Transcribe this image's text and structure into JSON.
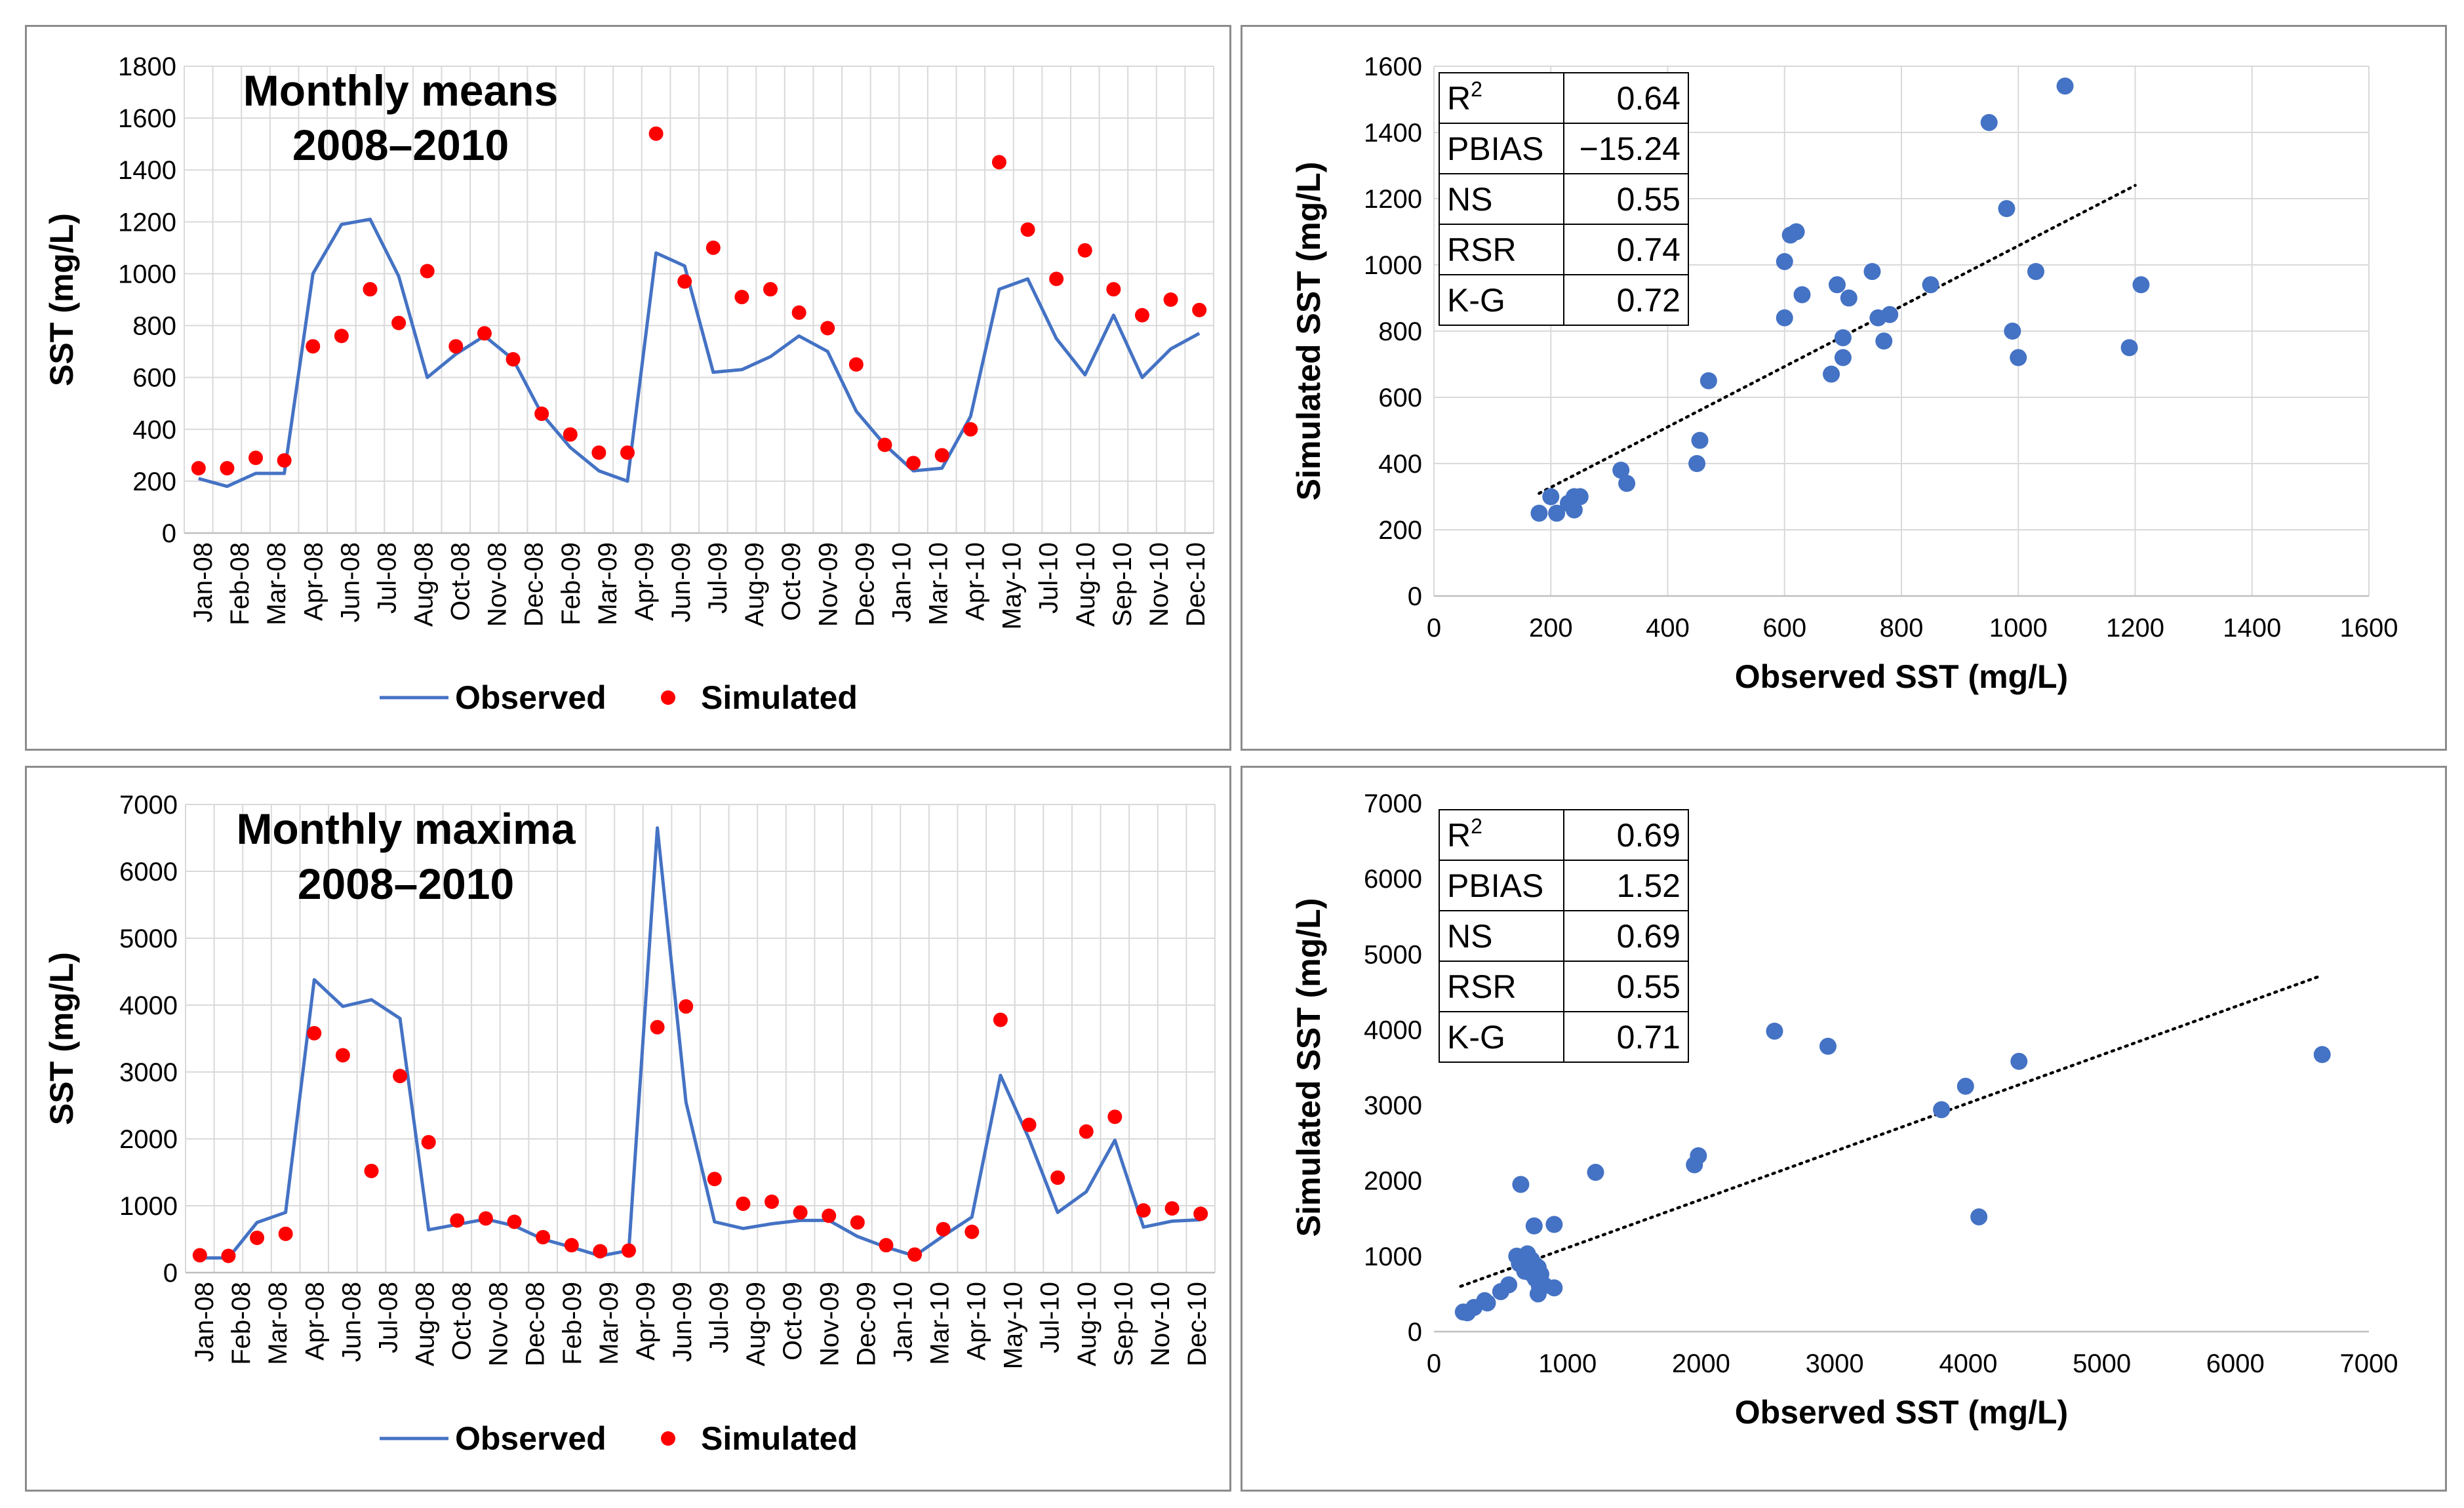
{
  "chart_data": [
    {
      "id": "ts-means",
      "type": "line",
      "title_line1": "Monthly means",
      "title_line2": "2008–2010",
      "xlabel": "",
      "ylabel": "SST (mg/L)",
      "ylim": [
        0,
        1800
      ],
      "yticks": [
        0,
        200,
        400,
        600,
        800,
        1000,
        1200,
        1400,
        1600,
        1800
      ],
      "grid": true,
      "legend_position": "bottom",
      "categories": [
        "Jan-08",
        "Feb-08",
        "Mar-08",
        "Apr-08",
        "May-08",
        "Jun-08",
        "Jul-08",
        "Aug-08",
        "Sep-08",
        "Oct-08",
        "Nov-08",
        "Dec-08",
        "Jan-09",
        "Feb-09",
        "Mar-09",
        "Apr-09",
        "May-09",
        "Jun-09",
        "Jul-09",
        "Aug-09",
        "Sep-09",
        "Oct-09",
        "Nov-09",
        "Dec-09",
        "Jan-10",
        "Feb-10",
        "Mar-10",
        "Apr-10",
        "May-10",
        "Jun-10",
        "Jul-10",
        "Aug-10",
        "Sep-10",
        "Oct-10",
        "Nov-10",
        "Dec-10"
      ],
      "tick_labels": [
        "Jan-08",
        "Feb-08",
        "Mar-08",
        "Apr-08",
        "Jun-08",
        "Jul-08",
        "Aug-08",
        "Oct-08",
        "Nov-08",
        "Dec-08",
        "Feb-09",
        "Mar-09",
        "Apr-09",
        "Jun-09",
        "Jul-09",
        "Aug-09",
        "Oct-09",
        "Nov-09",
        "Dec-09",
        "Jan-10",
        "Mar-10",
        "Apr-10",
        "May-10",
        "Jul-10",
        "Aug-10",
        "Sep-10",
        "Nov-10",
        "Dec-10"
      ],
      "series": [
        {
          "name": "Observed",
          "kind": "line",
          "color": "#4472c4",
          "values": [
            210,
            180,
            230,
            230,
            1000,
            1190,
            1210,
            990,
            600,
            690,
            760,
            670,
            460,
            330,
            240,
            200,
            1080,
            1030,
            620,
            630,
            680,
            760,
            700,
            470,
            340,
            240,
            250,
            450,
            940,
            980,
            750,
            610,
            840,
            600,
            710,
            770
          ]
        },
        {
          "name": "Simulated",
          "kind": "marker",
          "color": "#ff0000",
          "values": [
            250,
            250,
            290,
            280,
            720,
            760,
            940,
            810,
            1010,
            720,
            770,
            670,
            460,
            380,
            310,
            310,
            1540,
            970,
            1100,
            910,
            940,
            850,
            790,
            650,
            340,
            270,
            300,
            400,
            1430,
            1170,
            980,
            1090,
            940,
            840,
            900,
            860
          ]
        }
      ]
    },
    {
      "id": "sc-means",
      "type": "scatter",
      "xlabel": "Observed SST (mg/L)",
      "ylabel": "Simulated SST (mg/L)",
      "xlim": [
        0,
        1600
      ],
      "ylim": [
        0,
        1600
      ],
      "xticks": [
        0,
        200,
        400,
        600,
        800,
        1000,
        1200,
        1400,
        1600
      ],
      "yticks": [
        0,
        200,
        400,
        600,
        800,
        1000,
        1200,
        1400,
        1600
      ],
      "grid": true,
      "trendline": {
        "x": [
          180,
          1200
        ],
        "y": [
          310,
          1240
        ]
      },
      "color": "#4472c4",
      "points": [
        [
          180,
          250
        ],
        [
          200,
          300
        ],
        [
          210,
          250
        ],
        [
          230,
          280
        ],
        [
          240,
          300
        ],
        [
          240,
          260
        ],
        [
          250,
          300
        ],
        [
          320,
          380
        ],
        [
          330,
          340
        ],
        [
          450,
          400
        ],
        [
          455,
          470
        ],
        [
          470,
          650
        ],
        [
          600,
          1010
        ],
        [
          600,
          840
        ],
        [
          610,
          1090
        ],
        [
          620,
          1100
        ],
        [
          630,
          910
        ],
        [
          680,
          670
        ],
        [
          690,
          940
        ],
        [
          700,
          720
        ],
        [
          700,
          780
        ],
        [
          710,
          900
        ],
        [
          750,
          980
        ],
        [
          760,
          840
        ],
        [
          770,
          770
        ],
        [
          780,
          850
        ],
        [
          850,
          940
        ],
        [
          950,
          1430
        ],
        [
          980,
          1170
        ],
        [
          990,
          800
        ],
        [
          1000,
          720
        ],
        [
          1030,
          980
        ],
        [
          1080,
          1540
        ],
        [
          1190,
          750
        ],
        [
          1210,
          940
        ]
      ],
      "stats": [
        {
          "label": "R",
          "sup": "2",
          "value": "0.64"
        },
        {
          "label": "PBIAS",
          "sup": "",
          "value": "−15.24"
        },
        {
          "label": "NS",
          "sup": "",
          "value": "0.55"
        },
        {
          "label": "RSR",
          "sup": "",
          "value": "0.74"
        },
        {
          "label": "K-G",
          "sup": "",
          "value": "0.72"
        }
      ]
    },
    {
      "id": "ts-maxima",
      "type": "line",
      "title_line1": "Monthly maxima",
      "title_line2": "2008–2010",
      "xlabel": "",
      "ylabel": "SST (mg/L)",
      "ylim": [
        0,
        7000
      ],
      "yticks": [
        0,
        1000,
        2000,
        3000,
        4000,
        5000,
        6000,
        7000
      ],
      "grid": true,
      "legend_position": "bottom",
      "categories": [
        "Jan-08",
        "Feb-08",
        "Mar-08",
        "Apr-08",
        "May-08",
        "Jun-08",
        "Jul-08",
        "Aug-08",
        "Sep-08",
        "Oct-08",
        "Nov-08",
        "Dec-08",
        "Jan-09",
        "Feb-09",
        "Mar-09",
        "Apr-09",
        "May-09",
        "Jun-09",
        "Jul-09",
        "Aug-09",
        "Sep-09",
        "Oct-09",
        "Nov-09",
        "Dec-09",
        "Jan-10",
        "Feb-10",
        "Mar-10",
        "Apr-10",
        "May-10",
        "Jun-10",
        "Jul-10",
        "Aug-10",
        "Sep-10",
        "Oct-10",
        "Nov-10",
        "Dec-10"
      ],
      "tick_labels": [
        "Jan-08",
        "Feb-08",
        "Mar-08",
        "Apr-08",
        "Jun-08",
        "Jul-08",
        "Aug-08",
        "Oct-08",
        "Nov-08",
        "Dec-08",
        "Feb-09",
        "Mar-09",
        "Apr-09",
        "Jun-09",
        "Jul-09",
        "Aug-09",
        "Oct-09",
        "Nov-09",
        "Dec-09",
        "Jan-10",
        "Mar-10",
        "Apr-10",
        "May-10",
        "Jul-10",
        "Aug-10",
        "Sep-10",
        "Nov-10",
        "Dec-10"
      ],
      "series": [
        {
          "name": "Observed",
          "kind": "line",
          "color": "#4472c4",
          "values": [
            220,
            220,
            750,
            900,
            4380,
            3980,
            4080,
            3800,
            640,
            720,
            800,
            700,
            500,
            380,
            250,
            330,
            6650,
            2550,
            760,
            660,
            730,
            780,
            780,
            540,
            380,
            250,
            550,
            830,
            2950,
            2000,
            900,
            1210,
            1980,
            680,
            770,
            790
          ]
        },
        {
          "name": "Simulated",
          "kind": "marker",
          "color": "#ff0000",
          "values": [
            260,
            250,
            520,
            580,
            3580,
            3250,
            1520,
            2940,
            1950,
            780,
            810,
            760,
            530,
            410,
            320,
            330,
            3670,
            3980,
            1400,
            1030,
            1060,
            900,
            850,
            750,
            410,
            270,
            650,
            610,
            3780,
            2210,
            1420,
            2110,
            2330,
            930,
            960,
            880
          ]
        }
      ]
    },
    {
      "id": "sc-maxima",
      "type": "scatter",
      "xlabel": "Observed SST (mg/L)",
      "ylabel": "Simulated SST (mg/L)",
      "xlim": [
        0,
        7000
      ],
      "ylim": [
        0,
        7000
      ],
      "xticks": [
        0,
        1000,
        2000,
        3000,
        4000,
        5000,
        6000,
        7000
      ],
      "yticks": [
        0,
        1000,
        2000,
        3000,
        4000,
        5000,
        6000,
        7000
      ],
      "grid": false,
      "trendline": {
        "x": [
          200,
          6650
        ],
        "y": [
          600,
          4720
        ]
      },
      "color": "#4472c4",
      "points": [
        [
          220,
          260
        ],
        [
          250,
          250
        ],
        [
          300,
          320
        ],
        [
          380,
          410
        ],
        [
          400,
          380
        ],
        [
          500,
          530
        ],
        [
          560,
          620
        ],
        [
          650,
          1950
        ],
        [
          640,
          900
        ],
        [
          680,
          800
        ],
        [
          700,
          1030
        ],
        [
          720,
          780
        ],
        [
          730,
          950
        ],
        [
          750,
          1400
        ],
        [
          760,
          880
        ],
        [
          780,
          850
        ],
        [
          790,
          600
        ],
        [
          800,
          760
        ],
        [
          830,
          610
        ],
        [
          900,
          1420
        ],
        [
          900,
          580
        ],
        [
          1210,
          2110
        ],
        [
          1950,
          2210
        ],
        [
          1980,
          2330
        ],
        [
          2550,
          3980
        ],
        [
          2950,
          3780
        ],
        [
          3800,
          2940
        ],
        [
          3980,
          3250
        ],
        [
          4080,
          1520
        ],
        [
          4380,
          3580
        ],
        [
          6650,
          3670
        ],
        [
          760,
          700
        ],
        [
          780,
          500
        ],
        [
          620,
          1000
        ]
      ],
      "stats": [
        {
          "label": "R",
          "sup": "2",
          "value": "0.69"
        },
        {
          "label": "PBIAS",
          "sup": "",
          "value": "1.52"
        },
        {
          "label": "NS",
          "sup": "",
          "value": "0.69"
        },
        {
          "label": "RSR",
          "sup": "",
          "value": "0.55"
        },
        {
          "label": "K-G",
          "sup": "",
          "value": "0.71"
        }
      ]
    }
  ]
}
